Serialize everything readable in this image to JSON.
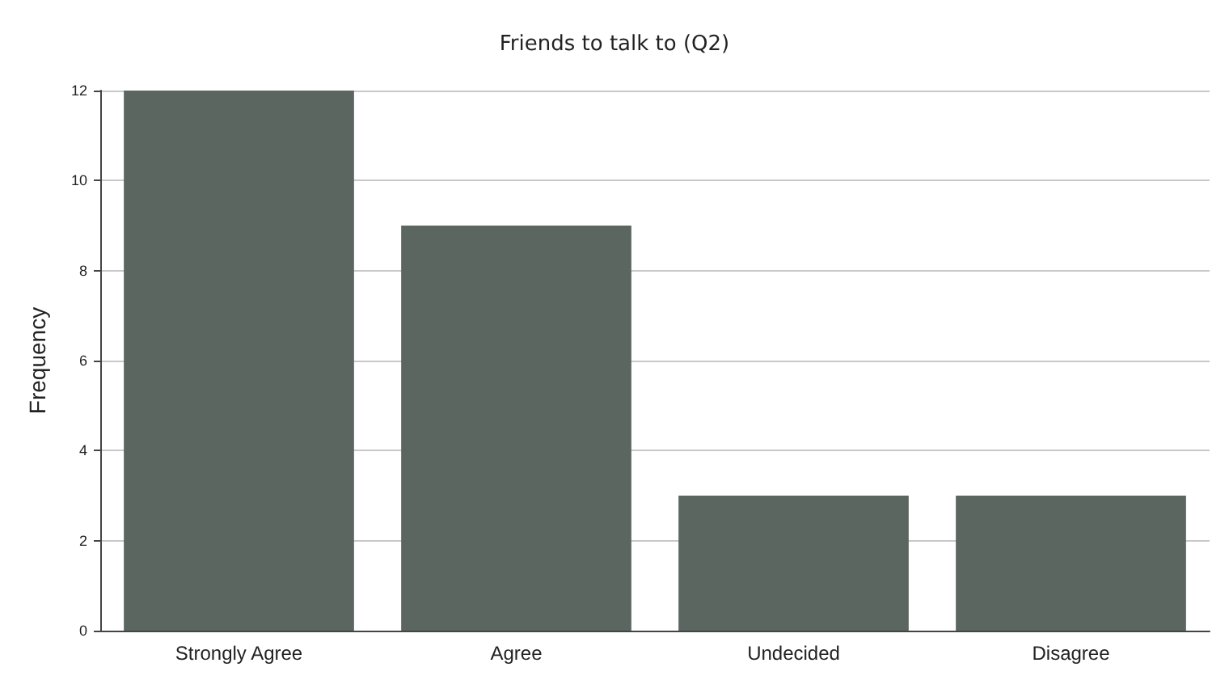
{
  "chart_data": {
    "type": "bar",
    "title": "Friends to talk to (Q2)",
    "ylabel": "Frequency",
    "categories": [
      "Strongly Agree",
      "Agree",
      "Undecided",
      "Disagree"
    ],
    "values": [
      12,
      9,
      3,
      3
    ],
    "color": "#5b6660",
    "ylim": [
      0,
      12
    ],
    "yticks": [
      0,
      2,
      4,
      6,
      8,
      10,
      12
    ],
    "grid": "y"
  }
}
